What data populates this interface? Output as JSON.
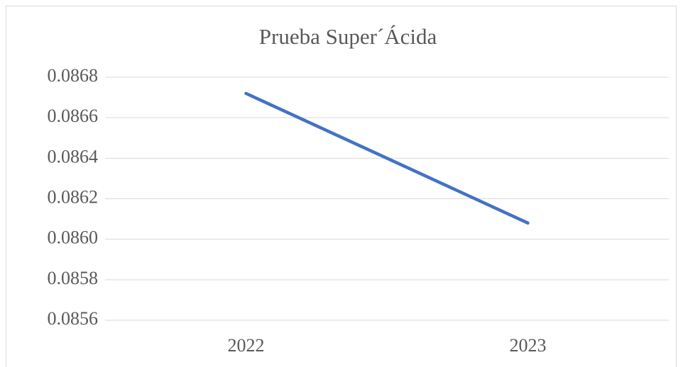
{
  "chart_data": {
    "type": "line",
    "title": "Prueba Super´Ácida",
    "categories": [
      "2022",
      "2023"
    ],
    "series": [
      {
        "name": "Prueba Super´Ácida",
        "color": "#4472c4",
        "values": [
          0.08672,
          0.08608
        ]
      }
    ],
    "ylim": [
      0.0856,
      0.0868
    ],
    "yticks": [
      0.0856,
      0.0858,
      {
        "value": 0.086,
        "label": "0.0860"
      },
      0.0862,
      0.0864,
      0.0866,
      0.0868
    ],
    "grid": true
  }
}
